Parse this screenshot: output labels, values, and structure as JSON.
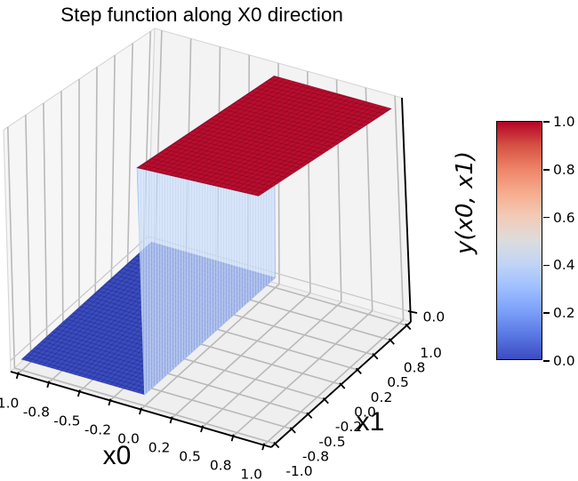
{
  "chart_data": {
    "type": "surface",
    "projection": "3d",
    "title": "Step function along X0 direction",
    "colormap": "coolwarm",
    "x0_axis": {
      "label": "x0",
      "range": [
        -1.0,
        1.0
      ],
      "tick_values": [
        -1,
        -0.75,
        -0.5,
        -0.25,
        0,
        0.25,
        0.5,
        0.75,
        1
      ],
      "tick_labels": [
        "-1.0",
        "-0.8",
        "-0.5",
        "-0.2",
        "0.0",
        "0.2",
        "0.5",
        "0.8",
        "1.0"
      ]
    },
    "x1_axis": {
      "label": "x1",
      "range": [
        -1.0,
        1.0
      ],
      "tick_values": [
        -1,
        -0.75,
        -0.5,
        -0.25,
        0,
        0.25,
        0.5,
        0.75,
        1
      ],
      "tick_labels": [
        "-1.0",
        "-0.8",
        "-0.5",
        "-0.2",
        "0.0",
        "0.2",
        "0.5",
        "0.8",
        "1.0"
      ]
    },
    "z_axis": {
      "label": "y(x0, x1)",
      "range": [
        0.0,
        1.0
      ],
      "tick_values": [
        0
      ],
      "tick_labels": [
        "0.0"
      ]
    },
    "surface_regions": [
      {
        "name": "low-plateau",
        "x0_range": [
          -1,
          0
        ],
        "x1_range": [
          -1,
          1
        ],
        "value": 0,
        "color": "#3b4cc0",
        "mesh_color": "rgba(18,28,110,0.45)"
      },
      {
        "name": "step-wall",
        "x0": 0,
        "x1_range": [
          -1,
          1
        ],
        "value_range": [
          0,
          1
        ],
        "color": "rgba(187,210,247,0.72)",
        "stripe_color": "rgba(255,255,255,0.5)",
        "edge_color": "rgba(158,188,240,0.9)"
      },
      {
        "name": "high-plateau",
        "x0_range": [
          0,
          1
        ],
        "x1_range": [
          -1,
          1
        ],
        "value": 1,
        "color": "#b90e2e",
        "mesh_color": "rgba(115,0,25,0.5)"
      }
    ],
    "colorbar": {
      "tick_values": [
        0,
        0.2,
        0.4,
        0.6,
        0.8,
        1.0
      ],
      "tick_labels": [
        "0.0",
        "0.2",
        "0.4",
        "0.6",
        "0.8",
        "1.0"
      ],
      "range": [
        0.0,
        1.0
      ],
      "gradient": [
        {
          "pos": 0.0,
          "color": "#3b4cc0"
        },
        {
          "pos": 0.1,
          "color": "#5977e3"
        },
        {
          "pos": 0.2,
          "color": "#7b9ff9"
        },
        {
          "pos": 0.3,
          "color": "#9ebeff"
        },
        {
          "pos": 0.4,
          "color": "#c0d4f5"
        },
        {
          "pos": 0.5,
          "color": "#dddcdc"
        },
        {
          "pos": 0.6,
          "color": "#f2cbb7"
        },
        {
          "pos": 0.7,
          "color": "#f7ac8e"
        },
        {
          "pos": 0.8,
          "color": "#ee8468"
        },
        {
          "pos": 0.9,
          "color": "#d65244"
        },
        {
          "pos": 1.0,
          "color": "#b40426"
        }
      ]
    },
    "style": {
      "grid_color": "#b9b9b9",
      "pane_left": "#f6f6f6",
      "pane_right": "#f3f3f3",
      "pane_floor": "#efefef",
      "pane_edge": "#d6d6d6",
      "axis_color": "#000000",
      "tick_font_px": 15.5,
      "axis_label_font_px": 30
    }
  }
}
